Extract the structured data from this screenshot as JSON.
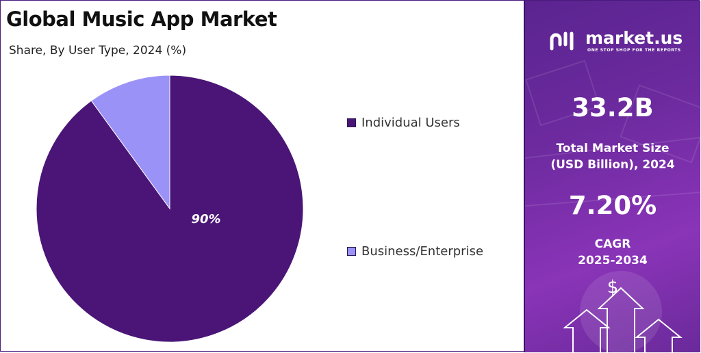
{
  "header": {
    "title": "Global Music App Market",
    "subtitle": "Share, By User Type, 2024 (%)"
  },
  "chart_data": {
    "type": "pie",
    "title": "Global Music App Market",
    "subtitle": "Share, By User Type, 2024 (%)",
    "categories": [
      "Individual Users",
      "Business/Enterprise"
    ],
    "values": [
      90,
      10
    ],
    "colors": [
      "#4a1577",
      "#9b92f8"
    ],
    "data_labels": [
      "90%",
      ""
    ],
    "legend_position": "right"
  },
  "legend": {
    "items": [
      {
        "label": "Individual Users",
        "color": "#4a1577"
      },
      {
        "label": "Business/Enterprise",
        "color": "#9b92f8"
      }
    ]
  },
  "side_panel": {
    "logo_text": "market.us",
    "logo_tagline": "ONE STOP SHOP FOR THE REPORTS",
    "market_size_value": "33.2B",
    "market_size_label_line1": "Total Market Size",
    "market_size_label_line2": "(USD Billion), 2024",
    "cagr_value": "7.20%",
    "cagr_label_line1": "CAGR",
    "cagr_label_line2": "2025-2034",
    "dollar_symbol": "$",
    "accent_color": "#6c2a9e"
  }
}
